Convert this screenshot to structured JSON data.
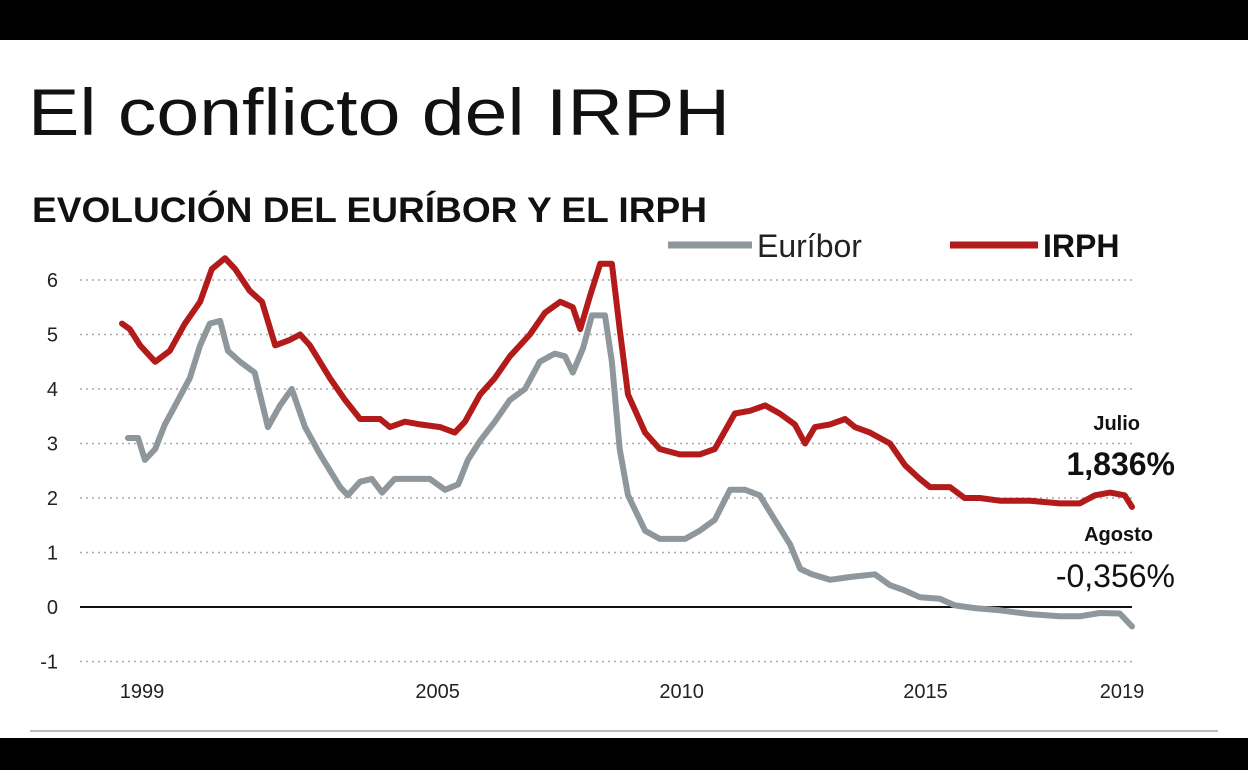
{
  "chart_data": {
    "type": "line",
    "title": "El conflicto del IRPH",
    "subtitle": "EVOLUCIÓN DEL EURÍBOR Y EL IRPH",
    "xlabel": "",
    "ylabel": "",
    "xlim": [
      1998.9,
      2019.6
    ],
    "ylim": [
      -1,
      6
    ],
    "x_ticks": [
      1999,
      2005,
      2010,
      2015,
      2019
    ],
    "x_tick_labels": [
      "1999",
      "2005",
      "2010",
      "2015",
      "2019"
    ],
    "y_ticks": [
      6,
      5,
      4,
      3,
      2,
      1,
      0,
      -1
    ],
    "y_tick_labels": [
      "6",
      "5",
      "4",
      "3",
      "2",
      "1",
      "0",
      "-1"
    ],
    "grid": true,
    "legend_position": "top-right",
    "series": [
      {
        "name": "Euríbor",
        "color": "#8e979b",
        "points": [
          [
            1999.02,
            3.1
          ],
          [
            1999.23,
            3.1
          ],
          [
            1999.37,
            2.7
          ],
          [
            1999.58,
            2.9
          ],
          [
            1999.78,
            3.35
          ],
          [
            1999.99,
            3.7
          ],
          [
            2000.29,
            4.2
          ],
          [
            2000.5,
            4.8
          ],
          [
            2000.7,
            5.2
          ],
          [
            2000.91,
            5.25
          ],
          [
            2001.07,
            4.7
          ],
          [
            2001.32,
            4.5
          ],
          [
            2001.62,
            4.3
          ],
          [
            2001.89,
            3.3
          ],
          [
            2002.14,
            3.7
          ],
          [
            2002.38,
            4.0
          ],
          [
            2002.65,
            3.3
          ],
          [
            2002.96,
            2.8
          ],
          [
            2003.37,
            2.2
          ],
          [
            2003.53,
            2.05
          ],
          [
            2003.78,
            2.3
          ],
          [
            2004.02,
            2.35
          ],
          [
            2004.23,
            2.1
          ],
          [
            2004.49,
            2.35
          ],
          [
            2004.8,
            2.35
          ],
          [
            2005.21,
            2.35
          ],
          [
            2005.52,
            2.15
          ],
          [
            2005.79,
            2.25
          ],
          [
            2005.99,
            2.7
          ],
          [
            2006.24,
            3.05
          ],
          [
            2006.54,
            3.4
          ],
          [
            2006.85,
            3.8
          ],
          [
            2007.16,
            4.0
          ],
          [
            2007.46,
            4.5
          ],
          [
            2007.77,
            4.65
          ],
          [
            2007.98,
            4.6
          ],
          [
            2008.14,
            4.3
          ],
          [
            2008.35,
            4.75
          ],
          [
            2008.53,
            5.35
          ],
          [
            2008.8,
            5.35
          ],
          [
            2008.94,
            4.5
          ],
          [
            2009.1,
            2.9
          ],
          [
            2009.27,
            2.05
          ],
          [
            2009.62,
            1.4
          ],
          [
            2009.92,
            1.25
          ],
          [
            2010.44,
            1.25
          ],
          [
            2010.74,
            1.4
          ],
          [
            2011.05,
            1.6
          ],
          [
            2011.36,
            2.15
          ],
          [
            2011.67,
            2.15
          ],
          [
            2011.97,
            2.05
          ],
          [
            2012.28,
            1.6
          ],
          [
            2012.59,
            1.15
          ],
          [
            2012.8,
            0.7
          ],
          [
            2013.04,
            0.6
          ],
          [
            2013.41,
            0.5
          ],
          [
            2013.82,
            0.55
          ],
          [
            2014.33,
            0.6
          ],
          [
            2014.64,
            0.4
          ],
          [
            2014.95,
            0.3
          ],
          [
            2015.25,
            0.18
          ],
          [
            2015.66,
            0.15
          ],
          [
            2015.97,
            0.03
          ],
          [
            2016.38,
            -0.02
          ],
          [
            2016.89,
            -0.06
          ],
          [
            2017.51,
            -0.13
          ],
          [
            2018.12,
            -0.17
          ],
          [
            2018.53,
            -0.17
          ],
          [
            2018.94,
            -0.11
          ],
          [
            2019.35,
            -0.12
          ],
          [
            2019.6,
            -0.356
          ]
        ]
      },
      {
        "name": "IRPH",
        "color": "#b31b1b",
        "points": [
          [
            1998.9,
            5.2
          ],
          [
            1999.06,
            5.1
          ],
          [
            1999.27,
            4.8
          ],
          [
            1999.58,
            4.5
          ],
          [
            1999.88,
            4.7
          ],
          [
            2000.19,
            5.2
          ],
          [
            2000.5,
            5.6
          ],
          [
            2000.74,
            6.2
          ],
          [
            2001.01,
            6.4
          ],
          [
            2001.22,
            6.2
          ],
          [
            2001.52,
            5.8
          ],
          [
            2001.77,
            5.6
          ],
          [
            2002.04,
            4.8
          ],
          [
            2002.34,
            4.9
          ],
          [
            2002.55,
            5.0
          ],
          [
            2002.75,
            4.8
          ],
          [
            2003.16,
            4.2
          ],
          [
            2003.47,
            3.8
          ],
          [
            2003.78,
            3.45
          ],
          [
            2004.19,
            3.45
          ],
          [
            2004.39,
            3.3
          ],
          [
            2004.7,
            3.4
          ],
          [
            2005.01,
            3.35
          ],
          [
            2005.42,
            3.3
          ],
          [
            2005.72,
            3.2
          ],
          [
            2005.93,
            3.4
          ],
          [
            2006.24,
            3.9
          ],
          [
            2006.54,
            4.2
          ],
          [
            2006.85,
            4.6
          ],
          [
            2007.26,
            5.0
          ],
          [
            2007.57,
            5.4
          ],
          [
            2007.88,
            5.6
          ],
          [
            2008.14,
            5.5
          ],
          [
            2008.29,
            5.1
          ],
          [
            2008.49,
            5.7
          ],
          [
            2008.7,
            6.3
          ],
          [
            2008.94,
            6.3
          ],
          [
            2009.1,
            5.1
          ],
          [
            2009.27,
            3.9
          ],
          [
            2009.62,
            3.2
          ],
          [
            2009.92,
            2.9
          ],
          [
            2010.33,
            2.8
          ],
          [
            2010.74,
            2.8
          ],
          [
            2011.05,
            2.9
          ],
          [
            2011.46,
            3.55
          ],
          [
            2011.77,
            3.6
          ],
          [
            2012.08,
            3.7
          ],
          [
            2012.38,
            3.55
          ],
          [
            2012.69,
            3.35
          ],
          [
            2012.9,
            3.0
          ],
          [
            2013.1,
            3.3
          ],
          [
            2013.41,
            3.35
          ],
          [
            2013.72,
            3.45
          ],
          [
            2013.92,
            3.3
          ],
          [
            2014.23,
            3.2
          ],
          [
            2014.64,
            3.0
          ],
          [
            2014.95,
            2.6
          ],
          [
            2015.25,
            2.35
          ],
          [
            2015.46,
            2.2
          ],
          [
            2015.87,
            2.2
          ],
          [
            2016.17,
            2.0
          ],
          [
            2016.48,
            2.0
          ],
          [
            2016.89,
            1.95
          ],
          [
            2017.51,
            1.95
          ],
          [
            2018.12,
            1.9
          ],
          [
            2018.53,
            1.9
          ],
          [
            2018.84,
            2.05
          ],
          [
            2019.15,
            2.1
          ],
          [
            2019.45,
            2.05
          ],
          [
            2019.6,
            1.836
          ]
        ]
      }
    ],
    "annotations": {
      "irph_month": "Julio",
      "irph_value": "1,836%",
      "euribor_month": "Agosto",
      "euribor_value": "-0,356%"
    }
  }
}
